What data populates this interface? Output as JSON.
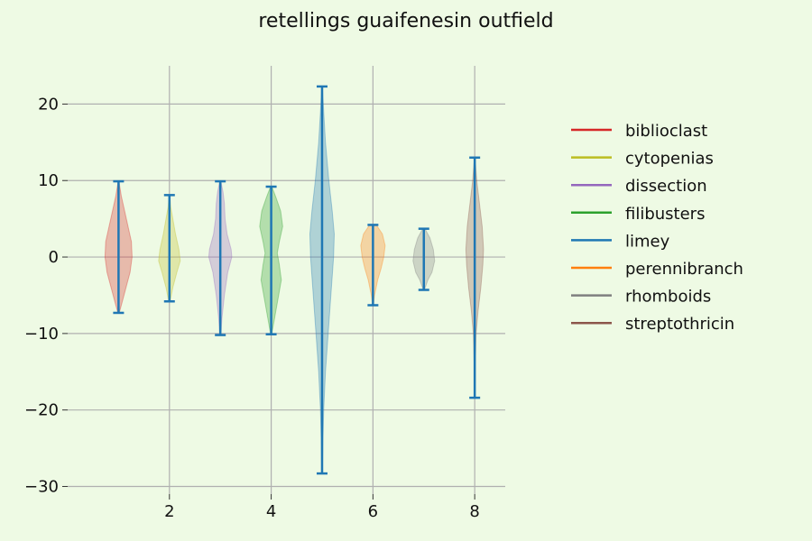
{
  "chart_data": {
    "type": "violin",
    "title": "retellings guaifenesin outfield",
    "xlabel": "",
    "ylabel": "",
    "xlim": [
      0.0,
      8.6
    ],
    "ylim": [
      -31,
      25
    ],
    "x_ticks": [
      2,
      4,
      6,
      8
    ],
    "y_ticks": [
      -30,
      -20,
      -10,
      0,
      10,
      20
    ],
    "grid": true,
    "legend_position": "right",
    "series": [
      {
        "name": "biblioclast",
        "color": "#d62728",
        "x": 1,
        "min": -7.3,
        "max": 9.9,
        "profile": [
          [
            -7.3,
            0.05
          ],
          [
            -6,
            0.25
          ],
          [
            -4,
            0.55
          ],
          [
            -2,
            0.85
          ],
          [
            0,
            1.0
          ],
          [
            2,
            0.95
          ],
          [
            4,
            0.7
          ],
          [
            6,
            0.45
          ],
          [
            8,
            0.2
          ],
          [
            9.9,
            0.03
          ]
        ]
      },
      {
        "name": "cytopenias",
        "color": "#bcbd22",
        "x": 2,
        "min": -5.8,
        "max": 8.1,
        "profile": [
          [
            -5.8,
            0.05
          ],
          [
            -4,
            0.25
          ],
          [
            -2,
            0.55
          ],
          [
            -0.5,
            0.8
          ],
          [
            1,
            0.7
          ],
          [
            3,
            0.45
          ],
          [
            5,
            0.25
          ],
          [
            6.5,
            0.1
          ],
          [
            8.1,
            0.02
          ]
        ]
      },
      {
        "name": "dissection",
        "color": "#9467bd",
        "x": 3,
        "min": -10.2,
        "max": 9.9,
        "profile": [
          [
            -10.2,
            0.04
          ],
          [
            -8,
            0.12
          ],
          [
            -5,
            0.3
          ],
          [
            -2,
            0.55
          ],
          [
            0,
            0.85
          ],
          [
            1,
            0.8
          ],
          [
            3,
            0.5
          ],
          [
            5,
            0.35
          ],
          [
            7,
            0.3
          ],
          [
            8.5,
            0.2
          ],
          [
            9.9,
            0.04
          ]
        ]
      },
      {
        "name": "filibusters",
        "color": "#2ca02c",
        "x": 4,
        "min": -10.1,
        "max": 9.2,
        "profile": [
          [
            -10.1,
            0.04
          ],
          [
            -8,
            0.25
          ],
          [
            -5,
            0.55
          ],
          [
            -3,
            0.75
          ],
          [
            -1,
            0.6
          ],
          [
            0.5,
            0.45
          ],
          [
            2,
            0.6
          ],
          [
            4,
            0.85
          ],
          [
            6,
            0.7
          ],
          [
            7.8,
            0.35
          ],
          [
            9.2,
            0.05
          ]
        ]
      },
      {
        "name": "limey",
        "color": "#1f77b4",
        "x": 5,
        "min": -28.3,
        "max": 22.3,
        "profile": [
          [
            -28.3,
            0.02
          ],
          [
            -24,
            0.06
          ],
          [
            -20,
            0.12
          ],
          [
            -15,
            0.25
          ],
          [
            -10,
            0.45
          ],
          [
            -5,
            0.65
          ],
          [
            0,
            0.85
          ],
          [
            3,
            0.9
          ],
          [
            6,
            0.75
          ],
          [
            10,
            0.5
          ],
          [
            15,
            0.25
          ],
          [
            19,
            0.12
          ],
          [
            22.3,
            0.02
          ]
        ]
      },
      {
        "name": "perennibranch",
        "color": "#ff7f0e",
        "x": 6,
        "min": -6.3,
        "max": 4.2,
        "profile": [
          [
            -6.3,
            0.03
          ],
          [
            -5,
            0.12
          ],
          [
            -3,
            0.35
          ],
          [
            -1.5,
            0.6
          ],
          [
            0,
            0.8
          ],
          [
            1.5,
            0.9
          ],
          [
            3,
            0.7
          ],
          [
            4.2,
            0.25
          ]
        ]
      },
      {
        "name": "rhomboids",
        "color": "#7f7f7f",
        "x": 7,
        "min": -4.3,
        "max": 3.7,
        "profile": [
          [
            -4.3,
            0.04
          ],
          [
            -3,
            0.3
          ],
          [
            -2,
            0.6
          ],
          [
            -0.5,
            0.8
          ],
          [
            1,
            0.7
          ],
          [
            2.5,
            0.45
          ],
          [
            3.7,
            0.08
          ]
        ]
      },
      {
        "name": "streptothricin",
        "color": "#8c564b",
        "x": 8,
        "min": -18.4,
        "max": 13.0,
        "profile": [
          [
            -18.4,
            0.02
          ],
          [
            -14,
            0.04
          ],
          [
            -10,
            0.1
          ],
          [
            -7,
            0.25
          ],
          [
            -4,
            0.45
          ],
          [
            -1,
            0.6
          ],
          [
            1,
            0.65
          ],
          [
            4,
            0.55
          ],
          [
            7,
            0.35
          ],
          [
            10,
            0.15
          ],
          [
            13,
            0.02
          ]
        ]
      }
    ]
  }
}
